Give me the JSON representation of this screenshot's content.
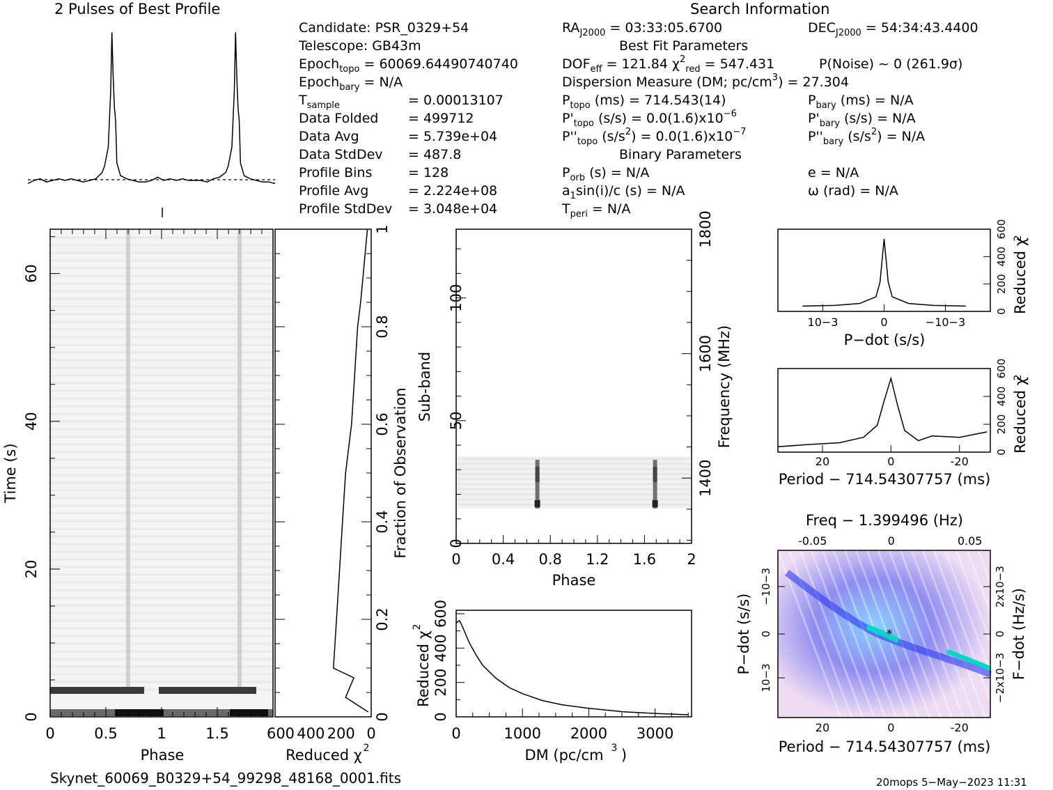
{
  "titles": {
    "profile": "2 Pulses of Best Profile",
    "search": "Search Information",
    "best_fit": "Best Fit Parameters",
    "binary": "Binary Parameters"
  },
  "info": {
    "candidate": "Candidate:  PSR_0329+54",
    "telescope": "Telescope:  GB43m",
    "epoch_topo": "= 60069.64490740740",
    "epoch_bary": "= N/A",
    "t_sample": "=   0.00013107",
    "data_folded_label": "Data Folded",
    "data_folded": "=   499712",
    "data_avg_label": "Data Avg",
    "data_avg": "=   5.739e+04",
    "data_std_label": "Data StdDev",
    "data_std": "=   487.8",
    "profile_bins_label": "Profile Bins",
    "profile_bins": "=   128",
    "profile_avg_label": "Profile Avg",
    "profile_avg": "=   2.224e+08",
    "profile_std_label": "Profile StdDev",
    "profile_std": "=   3.048e+04"
  },
  "search": {
    "ra": "= 03:33:05.6700",
    "dec": "= 54:34:43.4400",
    "dof": "= 121.84",
    "chi": "= 547.431",
    "pnoise": "P(Noise) ~ 0    (261.9σ)",
    "dm": "Dispersion Measure (DM; pc/cm",
    "dm_val": ") = 27.304",
    "p_topo": "(ms) =  714.543(14)",
    "pd_topo": "(s/s) = 0.0(1.6)x10",
    "pd_exp": "−6",
    "pdd_topo": "(s/s",
    "pdd_rest": ") = 0.0(1.6)x10",
    "pdd_exp": "−7",
    "p_bary": "(ms) = N/A",
    "pd_bary": "(s/s) = N/A",
    "pdd_bary": "(s/s",
    "pdd_bary_rest": ") = N/A",
    "porb": "(s) = N/A",
    "a1": "sin(i)/c (s) = N/A",
    "tperi": "= N/A",
    "e": "e = N/A",
    "omega": "ω (rad) = N/A"
  },
  "footer": {
    "filename": "Skynet_60069_B0329+54_99298_48168_0001.fits",
    "stamp": "20mops   5−May−2023 11:31"
  },
  "colors": {
    "axis": "#000000",
    "grey_dark": "#1a1a1a",
    "cmap_low": "#f2e6f5",
    "cmap_mid": "#1a3cff",
    "cmap_high": "#00e6d2"
  },
  "chart_data": [
    {
      "type": "line",
      "name": "profile",
      "title": "2 Pulses of Best Profile",
      "x": [
        0,
        0.05,
        0.1,
        0.15,
        0.2,
        0.25,
        0.3,
        0.35,
        0.4,
        0.45,
        0.5,
        0.55,
        0.6,
        0.62,
        0.65,
        0.67,
        0.68,
        0.69,
        0.7,
        0.71,
        0.72,
        0.75,
        0.8,
        0.85,
        0.9,
        0.95,
        1.0,
        1.05,
        1.1,
        1.15,
        1.2,
        1.25,
        1.3,
        1.35,
        1.4,
        1.45,
        1.5,
        1.55,
        1.6,
        1.62,
        1.65,
        1.67,
        1.68,
        1.69,
        1.7,
        1.71,
        1.72,
        1.75,
        1.8,
        1.85,
        1.9,
        1.95,
        2.0
      ],
      "values": [
        0.02,
        0.04,
        0.05,
        0.03,
        0.04,
        0.05,
        0.04,
        0.05,
        0.04,
        0.03,
        0.04,
        0.05,
        0.09,
        0.13,
        0.25,
        0.6,
        0.98,
        0.7,
        0.5,
        0.42,
        0.15,
        0.07,
        0.05,
        0.04,
        0.03,
        0.03,
        0.04,
        0.06,
        0.04,
        0.05,
        0.04,
        0.05,
        0.04,
        0.04,
        0.04,
        0.03,
        0.05,
        0.06,
        0.09,
        0.13,
        0.25,
        0.6,
        0.98,
        0.7,
        0.5,
        0.42,
        0.15,
        0.07,
        0.05,
        0.04,
        0.03,
        0.03,
        0.02
      ]
    },
    {
      "type": "heatmap",
      "name": "time-phase",
      "xlabel": "Phase",
      "ylabel": "Time (s)",
      "xticks": [
        0,
        0.5,
        1,
        1.5
      ],
      "yticks": [
        0,
        20,
        40,
        60
      ],
      "xlim": [
        0,
        2
      ],
      "ylim": [
        0,
        66
      ]
    },
    {
      "type": "line",
      "name": "chi-vs-time",
      "xlabel": "Reduced χ2",
      "ylabel": "Fraction of Observation",
      "xticks": [
        600,
        400,
        200,
        0
      ],
      "yticks": [
        0,
        0.2,
        0.4,
        0.6,
        0.8,
        1
      ],
      "x": [
        20,
        170,
        115,
        250,
        230,
        210,
        190,
        170,
        150,
        130,
        110,
        90,
        70,
        55,
        40,
        25
      ],
      "values": [
        0.01,
        0.04,
        0.08,
        0.1,
        0.2,
        0.3,
        0.4,
        0.5,
        0.55,
        0.6,
        0.7,
        0.8,
        0.85,
        0.9,
        0.95,
        1.0
      ]
    },
    {
      "type": "heatmap",
      "name": "subband-phase",
      "xlabel": "Phase",
      "ylabel": "Sub-band",
      "y2label": "Frequency (MHz)",
      "xticks": [
        0,
        0.4,
        0.8,
        1.2,
        1.6,
        2
      ],
      "yticks": [
        0,
        50,
        100
      ],
      "y2ticks": [
        1400,
        1600,
        1800
      ]
    },
    {
      "type": "line",
      "name": "dm-curve",
      "xlabel": "DM (pc/cm3)",
      "ylabel": "Reduced χ2",
      "xticks": [
        0,
        1000,
        2000,
        3000
      ],
      "yticks": [
        0,
        200,
        400,
        600
      ],
      "x": [
        0,
        50,
        100,
        200,
        300,
        400,
        600,
        800,
        1000,
        1300,
        1600,
        2000,
        2500,
        3000,
        3500
      ],
      "values": [
        547,
        560,
        520,
        430,
        360,
        300,
        225,
        170,
        135,
        95,
        70,
        50,
        30,
        20,
        12
      ]
    },
    {
      "type": "line",
      "name": "pdot-curve",
      "xlabel": "P−dot (s/s)",
      "ylabel": "Reduced χ2",
      "xticks": [
        "10−3",
        "0",
        "−10−3"
      ],
      "yticks": [
        0,
        200,
        400,
        600
      ],
      "x": [
        -1,
        -0.6,
        -0.3,
        -0.1,
        -0.05,
        0,
        0.05,
        0.1,
        0.3,
        0.6,
        1
      ],
      "values": [
        40,
        45,
        60,
        110,
        220,
        547,
        220,
        110,
        60,
        45,
        40
      ]
    },
    {
      "type": "line",
      "name": "period-curve",
      "xlabel": "Period − 714.54307757 (ms)",
      "ylabel": "Reduced χ2",
      "xticks": [
        20,
        0,
        -20
      ],
      "yticks": [
        0,
        200,
        400,
        600
      ],
      "x": [
        33,
        25,
        15,
        8,
        4,
        2,
        0,
        -2,
        -4,
        -8,
        -12,
        -20,
        -28
      ],
      "values": [
        40,
        55,
        70,
        110,
        200,
        380,
        547,
        340,
        160,
        85,
        120,
        110,
        150
      ]
    },
    {
      "type": "heatmap",
      "name": "period-pdot",
      "title": "Freq − 1.399496 (Hz)",
      "xlabel": "Period − 714.54307757 (ms)",
      "ylabel": "P−dot (s/s)",
      "y2label": "F−dot (Hz/s)",
      "xticks": [
        20,
        0,
        -20
      ],
      "x2ticks": [
        -0.05,
        0,
        0.05
      ],
      "yticks": [
        "−10−3",
        "0",
        "10−3"
      ],
      "y2ticks": [
        "2x10−3",
        "0",
        "−2x10−3"
      ]
    }
  ]
}
